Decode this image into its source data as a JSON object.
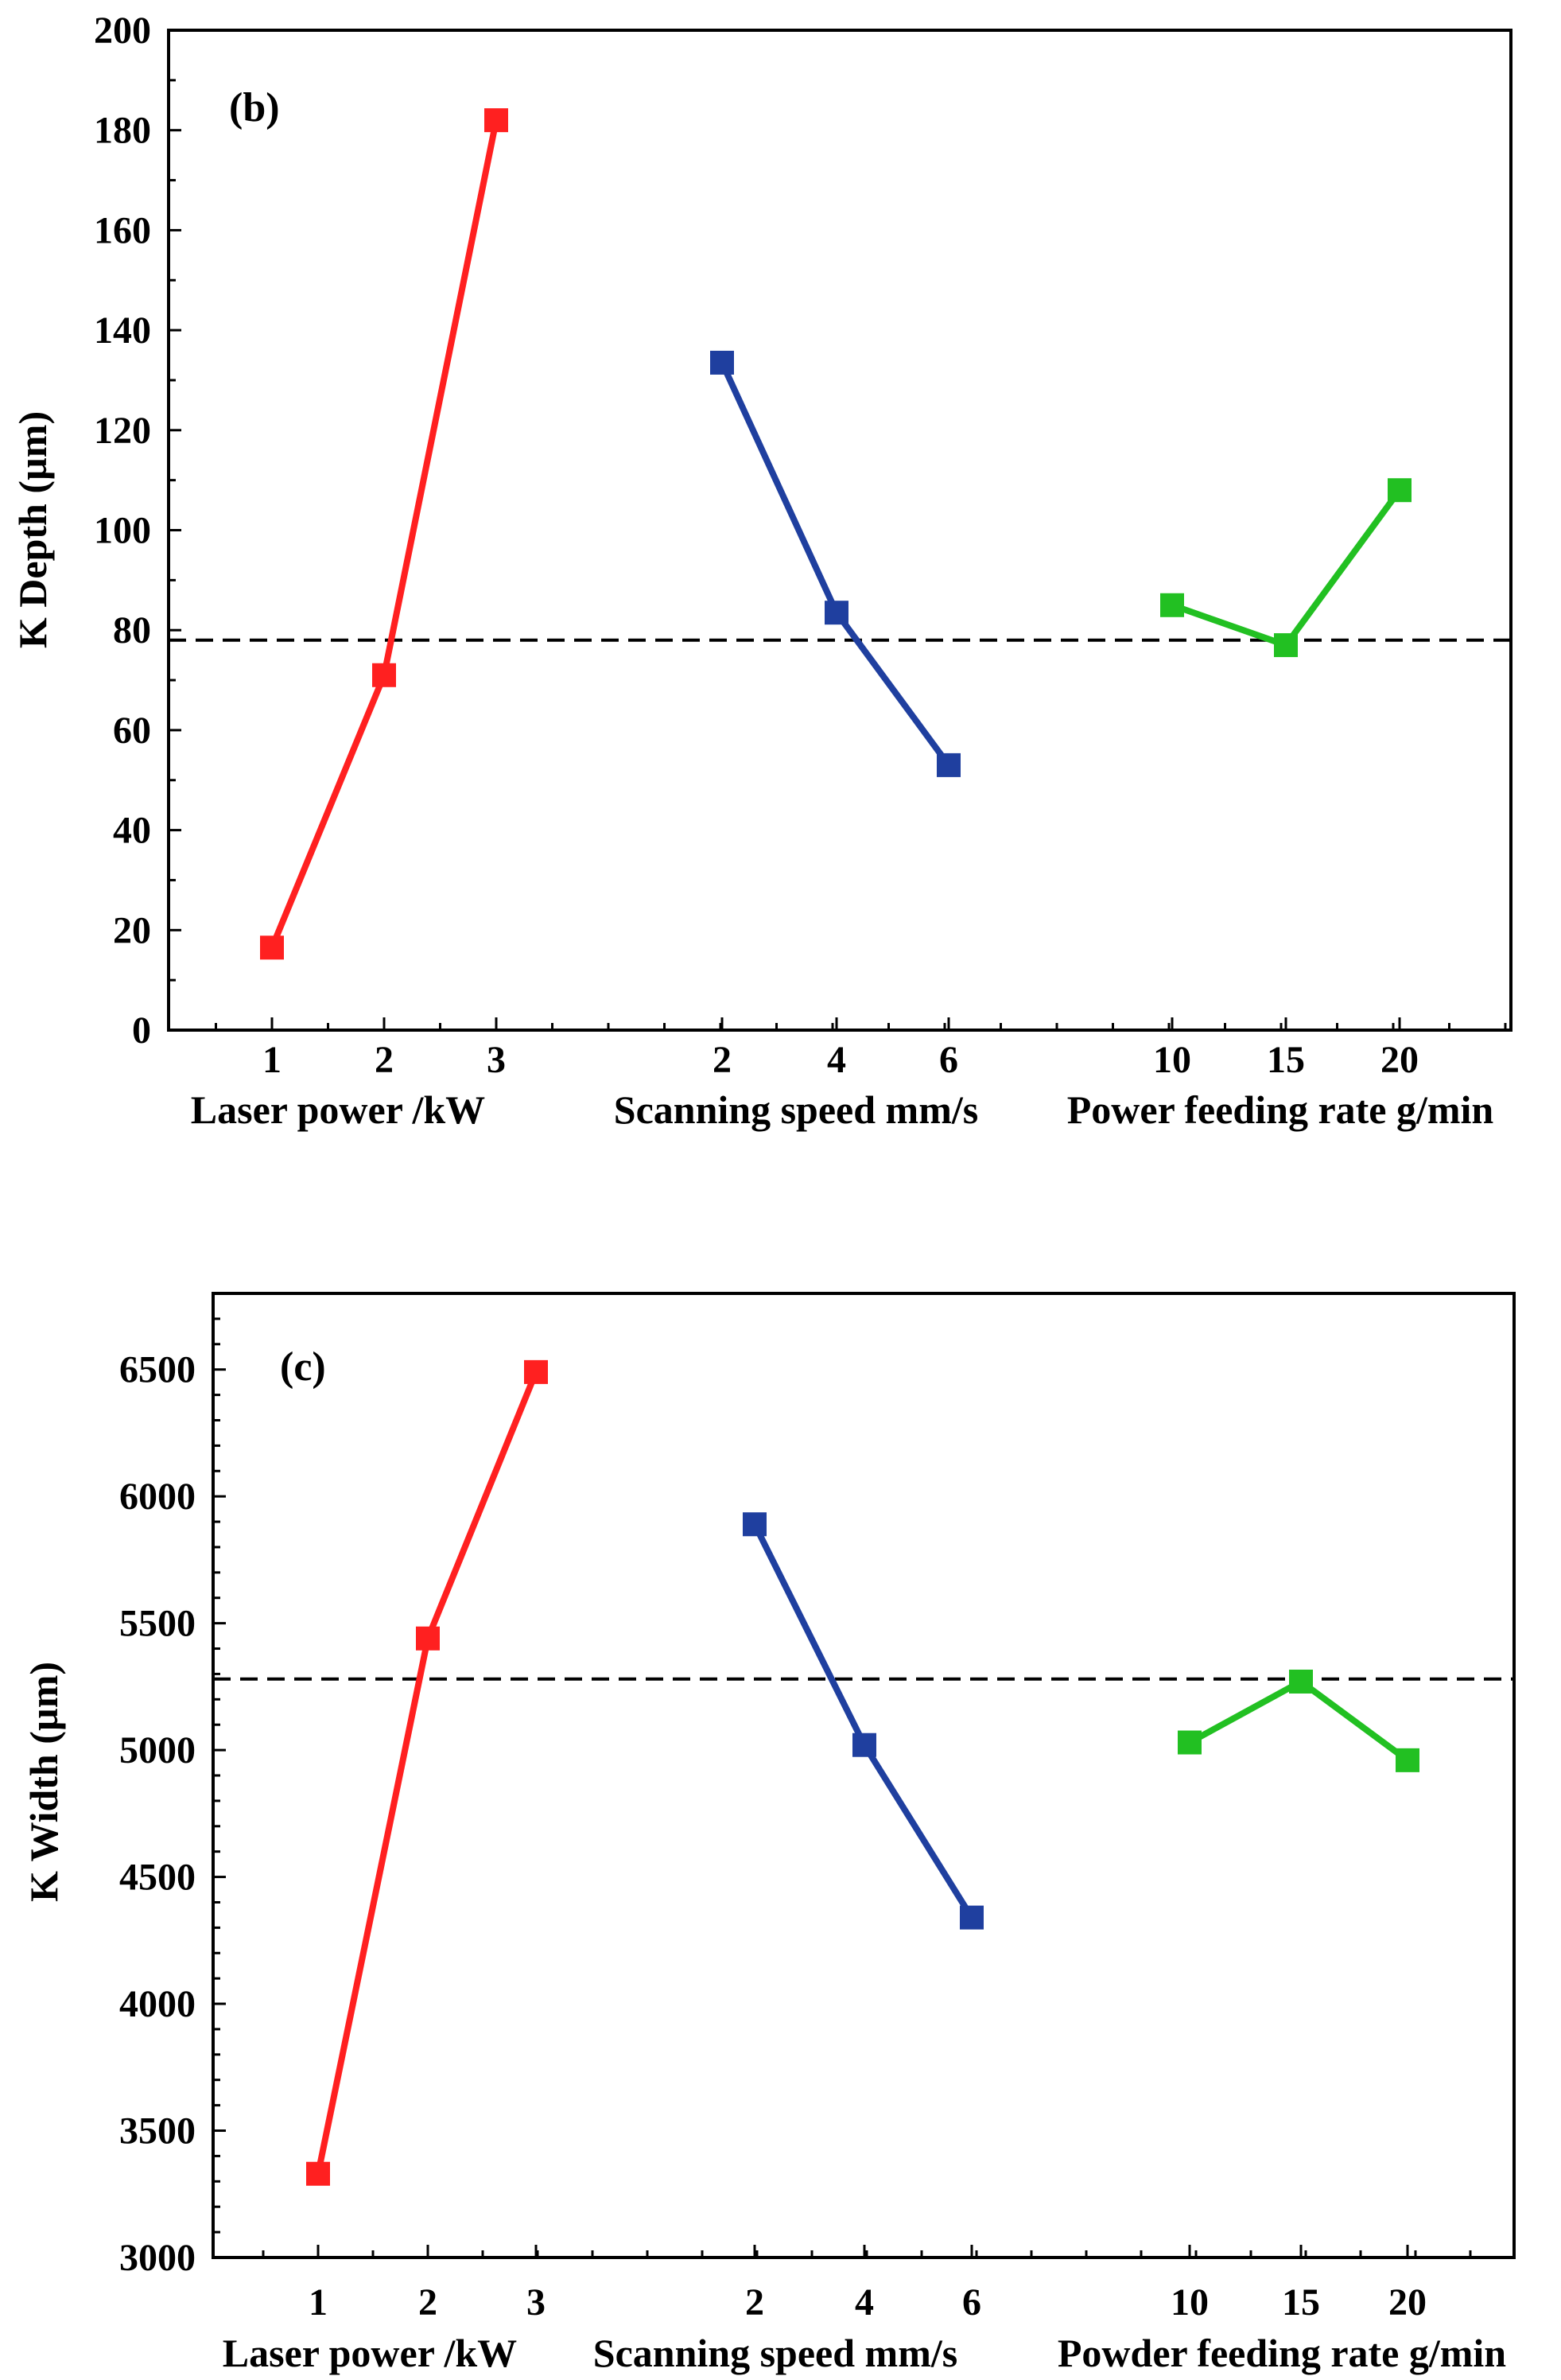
{
  "chart_data": [
    {
      "type": "line",
      "panel_label": "(b)",
      "ylabel": "K Depth (µm)",
      "ylim": [
        0,
        200
      ],
      "yticks": [
        0,
        20,
        40,
        60,
        80,
        100,
        120,
        140,
        160,
        180,
        200
      ],
      "reference_line": {
        "value": 78,
        "style": "dashed"
      },
      "groups": [
        {
          "label": "Laser power /kW",
          "categories": [
            "1",
            "2",
            "3"
          ],
          "values": [
            16.5,
            71,
            182
          ],
          "color": "#ff2020"
        },
        {
          "label": "Scanning speed mm/s",
          "categories": [
            "2",
            "4",
            "6"
          ],
          "values": [
            133.5,
            83.5,
            53
          ],
          "color": "#1f3f9f"
        },
        {
          "label": "Power feeding rate g/min",
          "categories": [
            "10",
            "15",
            "20"
          ],
          "values": [
            85,
            77,
            108
          ],
          "color": "#22c022"
        }
      ]
    },
    {
      "type": "line",
      "panel_label": "(c)",
      "ylabel": "K Width (µm)",
      "ylim": [
        3000,
        6800
      ],
      "yticks": [
        3000,
        3500,
        4000,
        4500,
        5000,
        5500,
        6000,
        6500
      ],
      "reference_line": {
        "value": 5280,
        "style": "dashed"
      },
      "groups": [
        {
          "label": "Laser power /kW",
          "categories": [
            "1",
            "2",
            "3"
          ],
          "values": [
            3330,
            5440,
            6490
          ],
          "color": "#ff2020"
        },
        {
          "label": "Scanning speed mm/s",
          "categories": [
            "2",
            "4",
            "6"
          ],
          "values": [
            5890,
            5020,
            4340
          ],
          "color": "#1f3f9f"
        },
        {
          "label": "Powder feeding rate g/min",
          "categories": [
            "10",
            "15",
            "20"
          ],
          "values": [
            5030,
            5270,
            4960
          ],
          "color": "#22c022"
        }
      ]
    }
  ]
}
